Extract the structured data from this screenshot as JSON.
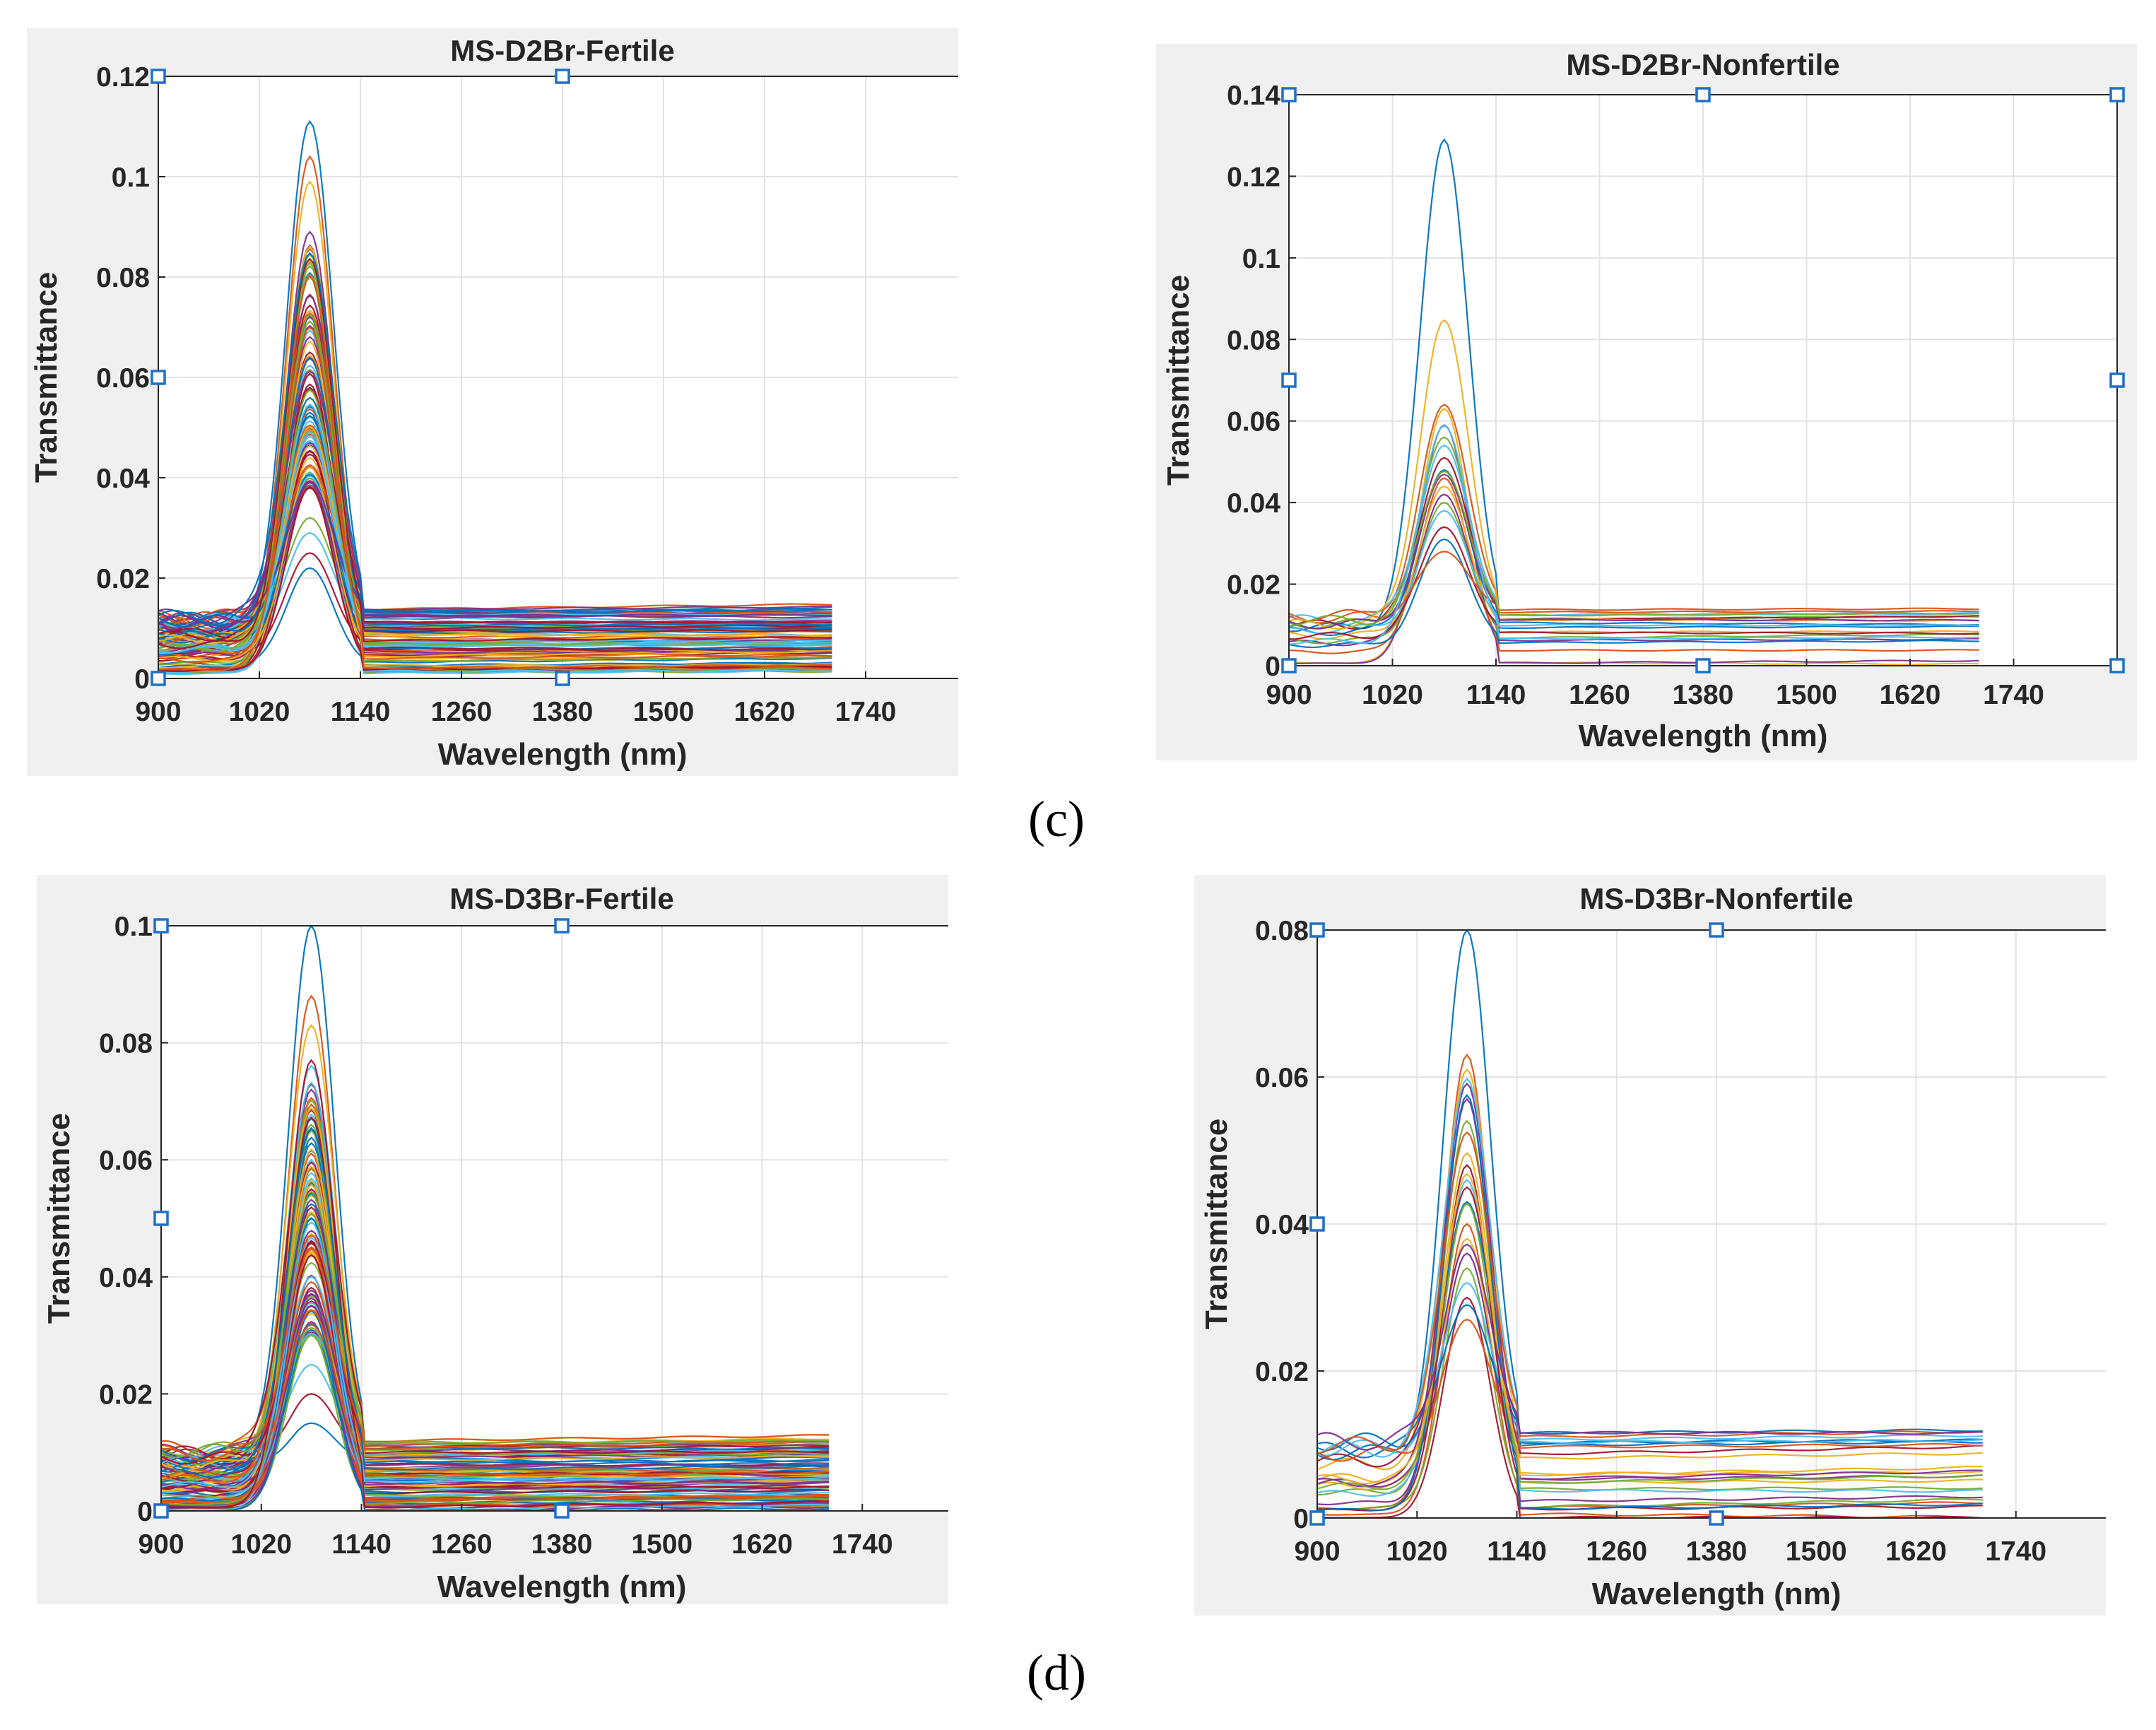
{
  "captions": [
    "(c)",
    "(d)"
  ],
  "colors": {
    "palette": [
      "#0072BD",
      "#D95319",
      "#EDB120",
      "#7E2F8E",
      "#77AC30",
      "#4DBEEE",
      "#A2142F"
    ],
    "handle": "#1f6fc9",
    "grid": "#e3e3e3",
    "axis": "#262626"
  },
  "chart_data": [
    {
      "type": "line",
      "title": "MS-D2Br-Fertile",
      "xlabel": "Wavelength (nm)",
      "ylabel": "Transmittance",
      "xlim": [
        900,
        1860
      ],
      "ylim": [
        0,
        0.12
      ],
      "xticks": [
        900,
        1020,
        1140,
        1260,
        1380,
        1500,
        1620,
        1740
      ],
      "yticks": [
        0,
        0.02,
        0.04,
        0.06,
        0.08,
        0.1,
        0.12
      ],
      "ytick_labels": [
        "0",
        "0.02",
        "0.04",
        "0.06",
        "0.08",
        "0.1",
        "0.12"
      ],
      "grid": true,
      "data_x_range": [
        900,
        1700
      ],
      "peak_wavelength": 1080,
      "series_count": 100,
      "peak_range": [
        0.022,
        0.111
      ],
      "baseline_range": [
        0.001,
        0.014
      ],
      "highlight_peaks": [
        0.111,
        0.104,
        0.099,
        0.089,
        0.08,
        0.072,
        0.065,
        0.058,
        0.05,
        0.044,
        0.038,
        0.032,
        0.029,
        0.025,
        0.022
      ]
    },
    {
      "type": "line",
      "title": "MS-D2Br-Nonfertile",
      "xlabel": "Wavelength (nm)",
      "ylabel": "Transmittance",
      "xlim": [
        900,
        1860
      ],
      "ylim": [
        0,
        0.14
      ],
      "xticks": [
        900,
        1020,
        1140,
        1260,
        1380,
        1500,
        1620,
        1740
      ],
      "yticks": [
        0,
        0.02,
        0.04,
        0.06,
        0.08,
        0.1,
        0.12,
        0.14
      ],
      "ytick_labels": [
        "0",
        "0.02",
        "0.04",
        "0.06",
        "0.08",
        "0.1",
        "0.12",
        "0.14"
      ],
      "grid": true,
      "data_x_range": [
        900,
        1700
      ],
      "peak_wavelength": 1080,
      "series_count": 20,
      "peak_range": [
        0.028,
        0.129
      ],
      "baseline_range": [
        0.0,
        0.014
      ],
      "highlight_peaks": [
        0.129,
        0.064,
        0.063,
        0.059,
        0.056,
        0.054,
        0.051,
        0.048,
        0.046,
        0.044,
        0.042,
        0.04,
        0.038,
        0.034,
        0.031,
        0.028
      ]
    },
    {
      "type": "line",
      "title": "MS-D3Br-Fertile",
      "xlabel": "Wavelength (nm)",
      "ylabel": "Transmittance",
      "xlim": [
        900,
        1860
      ],
      "ylim": [
        0,
        0.1
      ],
      "xticks": [
        900,
        1020,
        1140,
        1260,
        1380,
        1500,
        1620,
        1740
      ],
      "yticks": [
        0,
        0.02,
        0.04,
        0.06,
        0.08,
        0.1
      ],
      "ytick_labels": [
        "0",
        "0.02",
        "0.04",
        "0.06",
        "0.08",
        "0.1"
      ],
      "grid": true,
      "data_x_range": [
        900,
        1700
      ],
      "peak_wavelength": 1080,
      "series_count": 100,
      "peak_range": [
        0.015,
        0.1
      ],
      "baseline_range": [
        0.0,
        0.012
      ],
      "highlight_peaks": [
        0.1,
        0.088,
        0.083,
        0.072,
        0.066,
        0.06,
        0.055,
        0.05,
        0.045,
        0.04,
        0.035,
        0.03,
        0.025,
        0.02,
        0.015
      ]
    },
    {
      "type": "line",
      "title": "MS-D3Br-Nonfertile",
      "xlabel": "Wavelength (nm)",
      "ylabel": "Transmittance",
      "xlim": [
        900,
        1860
      ],
      "ylim": [
        0,
        0.08
      ],
      "xticks": [
        900,
        1020,
        1140,
        1260,
        1380,
        1500,
        1620,
        1740
      ],
      "yticks": [
        0,
        0.02,
        0.04,
        0.06,
        0.08
      ],
      "ytick_labels": [
        "0",
        "0.02",
        "0.04",
        "0.06",
        "0.08"
      ],
      "grid": true,
      "data_x_range": [
        900,
        1700
      ],
      "peak_wavelength": 1080,
      "series_count": 25,
      "peak_range": [
        0.027,
        0.08
      ],
      "baseline_range": [
        0.0,
        0.012
      ],
      "highlight_peaks": [
        0.08,
        0.063,
        0.061,
        0.057,
        0.054,
        0.046,
        0.045,
        0.043,
        0.04,
        0.038,
        0.036,
        0.034,
        0.032,
        0.03,
        0.029,
        0.027
      ]
    }
  ]
}
